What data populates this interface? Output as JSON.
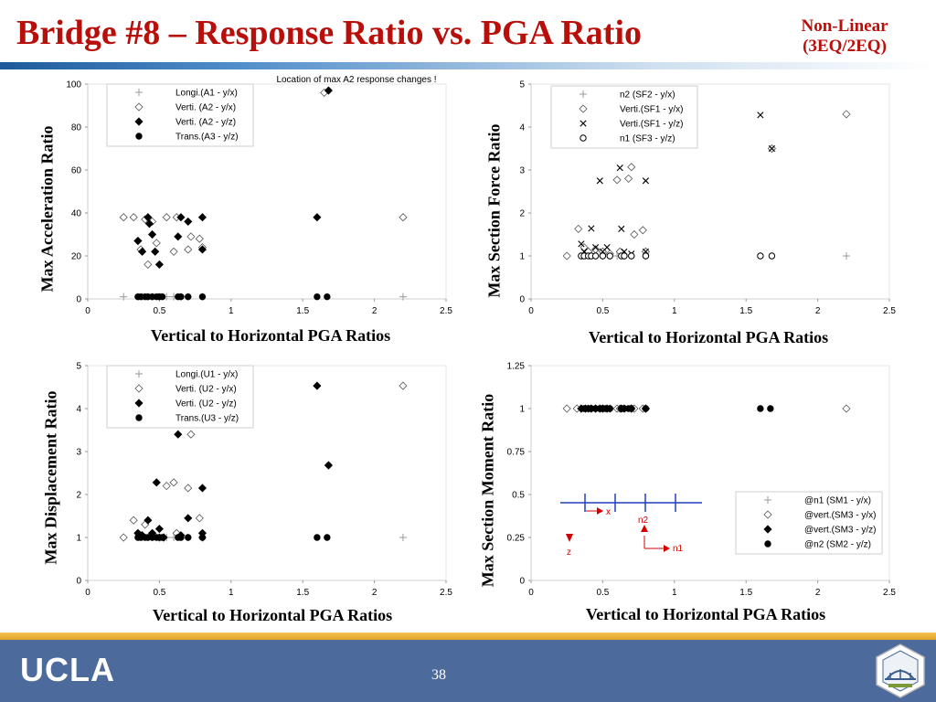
{
  "slide": {
    "title": "Bridge #8 – Response Ratio vs. PGA Ratio",
    "subtitle_line1": "Non-Linear",
    "subtitle_line2": "(3EQ/2EQ)",
    "footer_logo_text": "UCLA",
    "page_number": "38",
    "colors": {
      "title": "#b80f0a",
      "footer": "#4d6a9c",
      "accent_band": "#e0a42a",
      "diagram_blue": "#1f3fbf",
      "diagram_red": "#d40000"
    }
  },
  "chart_data": [
    {
      "id": "accel",
      "type": "scatter",
      "ylabel": "Max Acceleration Ratio",
      "xlabel": "Vertical to Horizontal PGA Ratios",
      "xlim": [
        0,
        2.5
      ],
      "ylim": [
        0,
        100
      ],
      "xticks": [
        "0",
        "0.5",
        "1",
        "1.5",
        "2",
        "2.5"
      ],
      "yticks": [
        "0",
        "20",
        "40",
        "60",
        "80",
        "100"
      ],
      "grid": false,
      "legend_position": "top-left",
      "annotation": "Location of max A2 response changes !",
      "series": [
        {
          "name": "Longi.(A1 - y/x)",
          "marker": "plus",
          "x": [
            0.25,
            0.35,
            0.38,
            0.42,
            0.45,
            0.5,
            0.55,
            0.6,
            0.65,
            0.7,
            0.8,
            2.2
          ],
          "y": [
            1,
            1,
            1,
            1,
            1,
            1,
            1,
            1,
            1,
            1,
            1,
            1
          ]
        },
        {
          "name": "Verti. (A2 - y/x)",
          "marker": "diamond-open",
          "x": [
            0.25,
            0.32,
            0.35,
            0.37,
            0.4,
            0.42,
            0.45,
            0.48,
            0.55,
            0.6,
            0.62,
            0.7,
            0.72,
            0.78,
            0.8,
            1.65,
            2.2
          ],
          "y": [
            38,
            38,
            27,
            23,
            37,
            16,
            36,
            26,
            38,
            22,
            38,
            23,
            29,
            28,
            24,
            96,
            38
          ]
        },
        {
          "name": "Verti. (A2 - y/z)",
          "marker": "diamond-filled",
          "x": [
            0.35,
            0.38,
            0.42,
            0.43,
            0.45,
            0.47,
            0.5,
            0.63,
            0.65,
            0.7,
            0.8,
            0.8,
            1.6,
            1.68
          ],
          "y": [
            27,
            22,
            38,
            35,
            30,
            22,
            16,
            29,
            38,
            36,
            23,
            38,
            38,
            97
          ]
        },
        {
          "name": "Trans.(A3 - y/z)",
          "marker": "circle-filled",
          "x": [
            0.35,
            0.37,
            0.4,
            0.42,
            0.45,
            0.48,
            0.5,
            0.52,
            0.63,
            0.65,
            0.7,
            0.8,
            1.6,
            1.67
          ],
          "y": [
            1,
            1,
            1,
            1,
            1,
            1,
            1,
            1,
            1,
            1,
            1,
            1,
            1,
            1
          ]
        }
      ]
    },
    {
      "id": "force",
      "type": "scatter",
      "ylabel": "Max Section Force Ratio",
      "xlabel": "Vertical to Horizontal PGA Ratios",
      "xlim": [
        0,
        2.5
      ],
      "ylim": [
        0,
        5
      ],
      "xticks": [
        "0",
        "0.5",
        "1",
        "1.5",
        "2",
        "2.5"
      ],
      "yticks": [
        "0",
        "1",
        "2",
        "3",
        "4",
        "5"
      ],
      "grid": false,
      "legend_position": "top-left",
      "series": [
        {
          "name": "n2     (SF2 - y/x)",
          "marker": "plus",
          "x": [
            0.25,
            0.35,
            0.38,
            0.42,
            0.45,
            0.5,
            0.55,
            0.6,
            0.65,
            0.7,
            0.8,
            2.2
          ],
          "y": [
            1,
            1,
            1,
            1,
            1,
            1,
            1,
            1,
            1,
            1,
            1,
            1
          ]
        },
        {
          "name": "Verti.(SF1 - y/x)",
          "marker": "diamond-open",
          "x": [
            0.25,
            0.33,
            0.37,
            0.4,
            0.45,
            0.5,
            0.55,
            0.6,
            0.62,
            0.68,
            0.7,
            0.72,
            0.78,
            0.8,
            1.68,
            2.2
          ],
          "y": [
            1,
            1.63,
            1.2,
            1.1,
            1.15,
            1.1,
            1.05,
            2.77,
            1.1,
            2.8,
            3.07,
            1.5,
            1.6,
            1.1,
            3.5,
            4.3
          ]
        },
        {
          "name": "Verti.(SF1 - y/z)",
          "marker": "cross",
          "x": [
            0.35,
            0.37,
            0.38,
            0.42,
            0.45,
            0.48,
            0.5,
            0.53,
            0.62,
            0.63,
            0.65,
            0.7,
            0.8,
            0.8,
            1.6,
            1.68
          ],
          "y": [
            1.28,
            1.1,
            1.0,
            1.64,
            1.2,
            2.75,
            1.1,
            1.2,
            3.05,
            1.63,
            1.1,
            1.05,
            1.1,
            2.75,
            4.28,
            3.5
          ]
        },
        {
          "name": "n1     (SF3 - y/z)",
          "marker": "circle-open",
          "x": [
            0.35,
            0.37,
            0.4,
            0.42,
            0.45,
            0.5,
            0.55,
            0.63,
            0.65,
            0.7,
            0.8,
            1.6,
            1.68
          ],
          "y": [
            1,
            1,
            1,
            1,
            1,
            1,
            1,
            1,
            1,
            1,
            1,
            1,
            1
          ]
        }
      ]
    },
    {
      "id": "disp",
      "type": "scatter",
      "ylabel": "Max Displacement Ratio",
      "xlabel": "Vertical to Horizontal PGA Ratios",
      "xlim": [
        0,
        2.5
      ],
      "ylim": [
        0,
        5
      ],
      "xticks": [
        "0",
        "0.5",
        "1",
        "1.5",
        "2",
        "2.5"
      ],
      "yticks": [
        "0",
        "1",
        "2",
        "3",
        "4",
        "5"
      ],
      "grid": false,
      "legend_position": "top-left",
      "series": [
        {
          "name": "Longi.(U1 - y/x)",
          "marker": "plus",
          "x": [
            0.25,
            0.35,
            0.38,
            0.42,
            0.45,
            0.5,
            0.55,
            0.6,
            0.65,
            0.7,
            0.8,
            2.2
          ],
          "y": [
            1,
            1,
            1,
            1,
            1,
            1,
            1,
            1,
            1,
            1,
            1,
            1
          ]
        },
        {
          "name": "Verti. (U2 - y/x)",
          "marker": "diamond-open",
          "x": [
            0.25,
            0.32,
            0.35,
            0.37,
            0.4,
            0.45,
            0.5,
            0.55,
            0.6,
            0.62,
            0.7,
            0.72,
            0.78,
            0.8,
            1.68,
            2.2
          ],
          "y": [
            1,
            1.4,
            1.1,
            1.05,
            1.3,
            1.1,
            1.0,
            2.2,
            2.28,
            1.1,
            2.15,
            3.4,
            1.45,
            1.0,
            2.68,
            4.53
          ]
        },
        {
          "name": "Verti. (U2 - y/z)",
          "marker": "diamond-filled",
          "x": [
            0.35,
            0.38,
            0.42,
            0.45,
            0.48,
            0.5,
            0.53,
            0.63,
            0.65,
            0.7,
            0.8,
            0.8,
            1.6,
            1.68
          ],
          "y": [
            1.1,
            1.05,
            1.4,
            1.1,
            2.28,
            1.2,
            1.0,
            3.4,
            1.05,
            1.45,
            2.15,
            1.1,
            4.53,
            2.68
          ]
        },
        {
          "name": "Trans.(U3 - y/z)",
          "marker": "circle-filled",
          "x": [
            0.35,
            0.37,
            0.4,
            0.42,
            0.45,
            0.48,
            0.5,
            0.52,
            0.63,
            0.65,
            0.7,
            0.8,
            1.6,
            1.67
          ],
          "y": [
            1,
            1,
            1,
            1,
            1,
            1,
            1,
            1,
            1,
            1,
            1,
            1,
            1,
            1
          ]
        }
      ]
    },
    {
      "id": "moment",
      "type": "scatter",
      "ylabel": "Max Section Moment Ratio",
      "xlabel": "Vertical to Horizontal PGA Ratios",
      "xlim": [
        0,
        2.5
      ],
      "ylim": [
        0,
        1.25
      ],
      "xticks": [
        "0",
        "0.5",
        "1",
        "1.5",
        "2",
        "2.5"
      ],
      "yticks": [
        "0",
        "0.25",
        "0.5",
        "0.75",
        "1",
        "1.25"
      ],
      "grid": false,
      "legend_position": "bottom-right",
      "diagram_labels": {
        "x": "x",
        "z": "z",
        "n1": "n1",
        "n2": "n2"
      },
      "series": [
        {
          "name": "@n1   (SM1 - y/x)",
          "marker": "plus",
          "x": [
            0.25,
            0.35,
            0.38,
            0.42,
            0.45,
            0.5,
            0.55,
            0.6,
            0.65,
            0.7,
            0.8,
            2.2
          ],
          "y": [
            1,
            1,
            1,
            1,
            1,
            1,
            1,
            1,
            1,
            1,
            1,
            1
          ]
        },
        {
          "name": "@vert.(SM3 - y/x)",
          "marker": "diamond-open",
          "x": [
            0.25,
            0.32,
            0.35,
            0.4,
            0.45,
            0.5,
            0.55,
            0.6,
            0.62,
            0.7,
            0.72,
            0.78,
            0.8,
            2.2
          ],
          "y": [
            1,
            1,
            1,
            1,
            1,
            1,
            1,
            1,
            1,
            1,
            1,
            1,
            1,
            1
          ]
        },
        {
          "name": "@vert.(SM3 - y/z)",
          "marker": "diamond-filled",
          "x": [
            0.35,
            0.38,
            0.42,
            0.45,
            0.48,
            0.5,
            0.53,
            0.63,
            0.65,
            0.7,
            0.8
          ],
          "y": [
            1,
            1,
            1,
            1,
            1,
            1,
            1,
            1,
            1,
            1,
            1
          ]
        },
        {
          "name": "@n2   (SM2 - y/z)",
          "marker": "circle-filled",
          "x": [
            0.37,
            0.4,
            0.42,
            0.45,
            0.48,
            0.5,
            0.52,
            0.55,
            0.63,
            0.65,
            0.68,
            0.7,
            0.8,
            1.6,
            1.67
          ],
          "y": [
            1,
            1,
            1,
            1,
            1,
            1,
            1,
            1,
            1,
            1,
            1,
            1,
            1,
            1,
            1
          ]
        }
      ]
    }
  ]
}
